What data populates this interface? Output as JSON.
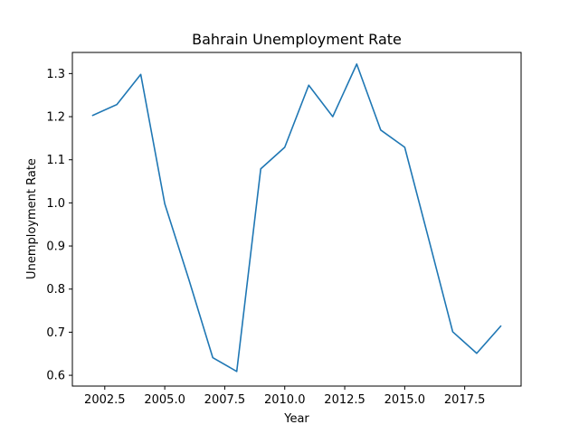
{
  "chart_data": {
    "type": "line",
    "title": "Bahrain Unemployment Rate",
    "xlabel": "Year",
    "ylabel": "Unemployment Rate",
    "xlim": [
      2001.15,
      2019.85
    ],
    "ylim": [
      0.575,
      1.349
    ],
    "xticks": [
      2002.5,
      2005.0,
      2007.5,
      2010.0,
      2012.5,
      2015.0,
      2017.5
    ],
    "xtick_labels": [
      "2002.5",
      "2005.0",
      "2007.5",
      "2010.0",
      "2012.5",
      "2015.0",
      "2017.5"
    ],
    "yticks": [
      0.6,
      0.7,
      0.8,
      0.9,
      1.0,
      1.1,
      1.2,
      1.3
    ],
    "ytick_labels": [
      "0.6",
      "0.7",
      "0.8",
      "0.9",
      "1.0",
      "1.1",
      "1.2",
      "1.3"
    ],
    "grid": false,
    "series": [
      {
        "color": "#1f77b4",
        "x": [
          2002,
          2003,
          2004,
          2005,
          2006,
          2007,
          2008,
          2009,
          2010,
          2011,
          2012,
          2013,
          2014,
          2015,
          2016,
          2017,
          2018,
          2019
        ],
        "y": [
          1.203,
          1.228,
          1.298,
          0.998,
          0.823,
          0.641,
          0.609,
          1.079,
          1.129,
          1.273,
          1.2,
          1.322,
          1.169,
          1.129,
          0.916,
          0.701,
          0.651,
          0.714
        ]
      }
    ]
  }
}
